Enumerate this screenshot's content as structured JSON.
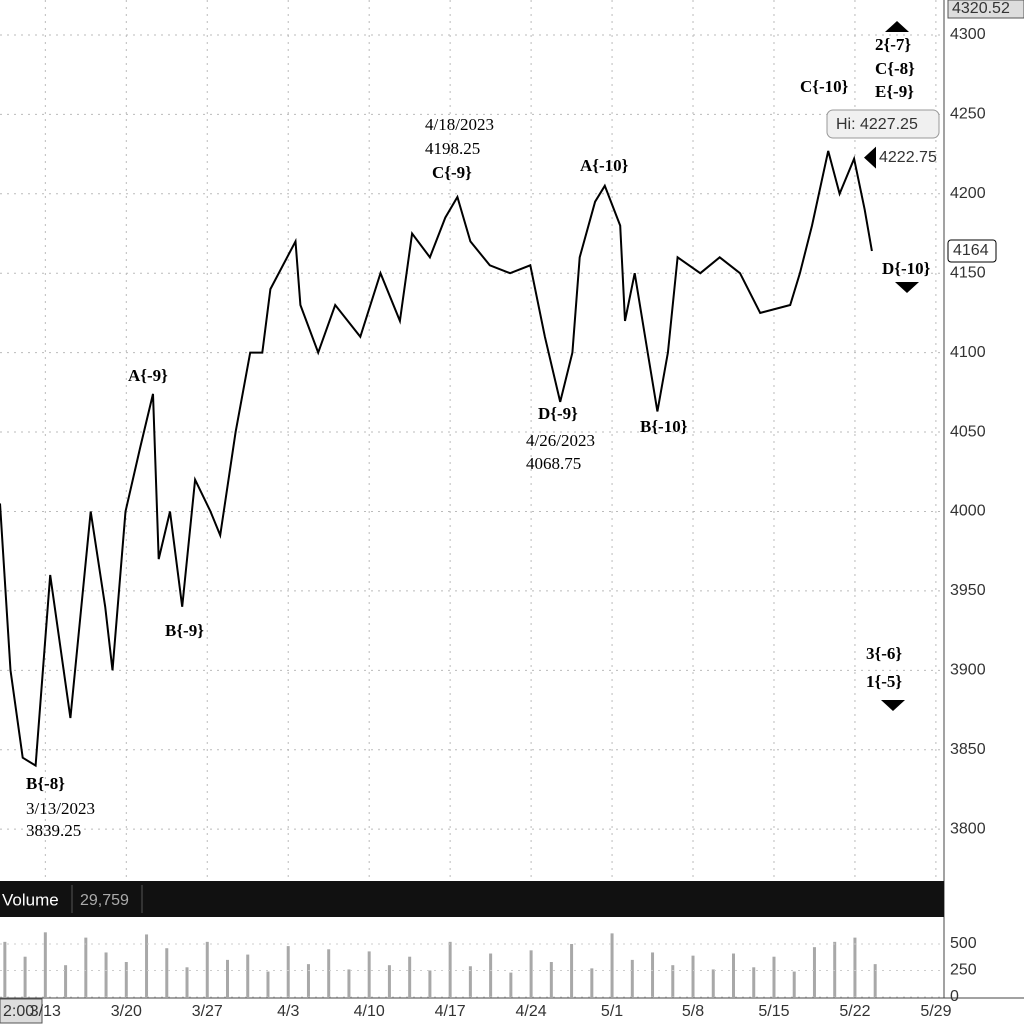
{
  "chart_data": [
    {
      "type": "line",
      "color": "#000000",
      "grid": true,
      "axis_top_label": 4320.52,
      "last_price": 4164,
      "marker_price": 4222.75,
      "high_label": "Hi: 4227.25",
      "xlim": [
        -0.56,
        11.1
      ],
      "ylim": [
        3768,
        4322
      ],
      "xticks": [
        {
          "value": 0,
          "label": "3/13"
        },
        {
          "value": 1,
          "label": "3/20"
        },
        {
          "value": 2,
          "label": "3/27"
        },
        {
          "value": 3,
          "label": "4/3"
        },
        {
          "value": 4,
          "label": "4/10"
        },
        {
          "value": 5,
          "label": "4/17"
        },
        {
          "value": 6,
          "label": "4/24"
        },
        {
          "value": 7,
          "label": "5/1"
        },
        {
          "value": 8,
          "label": "5/8"
        },
        {
          "value": 9,
          "label": "5/15"
        },
        {
          "value": 10,
          "label": "5/22"
        },
        {
          "value": 11,
          "label": "5/29"
        }
      ],
      "yticks": [
        3800,
        3850,
        3900,
        3950,
        4000,
        4050,
        4100,
        4150,
        4200,
        4250,
        4300
      ],
      "x": [
        -0.56,
        -0.43,
        -0.28,
        -0.12,
        0.06,
        0.31,
        0.56,
        0.74,
        0.83,
        0.99,
        1.17,
        1.33,
        1.4,
        1.54,
        1.69,
        1.85,
        2.04,
        2.16,
        2.35,
        2.53,
        2.68,
        2.78,
        3.09,
        3.15,
        3.37,
        3.58,
        3.89,
        4.14,
        4.38,
        4.53,
        4.75,
        4.94,
        5.09,
        5.25,
        5.49,
        5.74,
        5.99,
        6.17,
        6.36,
        6.51,
        6.6,
        6.79,
        6.91,
        7.1,
        7.16,
        7.28,
        7.44,
        7.56,
        7.69,
        7.81,
        8.09,
        8.33,
        8.58,
        8.83,
        9.2,
        9.32,
        9.47,
        9.67,
        9.81,
        9.99,
        10.12,
        10.21
      ],
      "values": [
        4005,
        3900,
        3845,
        3840,
        3960,
        3870,
        4000,
        3940,
        3900,
        4000,
        4040,
        4074,
        3970,
        4000,
        3940,
        4020,
        4000,
        3985,
        4050,
        4100,
        4100,
        4140,
        4170,
        4130,
        4100,
        4130,
        4110,
        4150,
        4120,
        4175,
        4160,
        4185,
        4198,
        4170,
        4155,
        4150,
        4155,
        4110,
        4069,
        4100,
        4160,
        4195,
        4205,
        4180,
        4120,
        4150,
        4100,
        4063,
        4100,
        4160,
        4150,
        4160,
        4150,
        4125,
        4130,
        4150,
        4180,
        4227,
        4200,
        4222,
        4190,
        4164
      ],
      "annotations": [
        "B{-8}",
        "3/13/2023",
        "3839.25",
        "A{-9}",
        "B{-9}",
        "4/18/2023",
        "4198.25",
        "C{-9}",
        "D{-9}",
        "4/26/2023",
        "4068.75",
        "A{-10}",
        "B{-10}",
        "C{-10}",
        "2{-7}",
        "C{-8}",
        "E{-9}",
        "D{-10}",
        "3{-6}",
        "1{-5}"
      ]
    },
    {
      "type": "bar",
      "title": "Volume",
      "color": "#a8a8a8",
      "current": 29759,
      "current_label": "29,759",
      "time_label": "2:00",
      "xlim": [
        -0.56,
        11.1
      ],
      "ylim": [
        0,
        745
      ],
      "yticks": [
        0,
        250,
        500
      ],
      "x": [
        -0.5,
        -0.25,
        0,
        0.25,
        0.5,
        0.75,
        1,
        1.25,
        1.5,
        1.75,
        2,
        2.25,
        2.5,
        2.75,
        3,
        3.25,
        3.5,
        3.75,
        4,
        4.25,
        4.5,
        4.75,
        5,
        5.25,
        5.5,
        5.75,
        6,
        6.25,
        6.5,
        6.75,
        7,
        7.25,
        7.5,
        7.75,
        8,
        8.25,
        8.5,
        8.75,
        9,
        9.25,
        9.5,
        9.75,
        10,
        10.25
      ],
      "values": [
        520,
        380,
        610,
        300,
        560,
        420,
        330,
        590,
        460,
        280,
        520,
        350,
        400,
        240,
        480,
        310,
        450,
        260,
        430,
        300,
        380,
        250,
        520,
        290,
        410,
        230,
        440,
        330,
        500,
        270,
        600,
        350,
        420,
        300,
        390,
        260,
        410,
        280,
        380,
        240,
        470,
        520,
        560,
        310
      ]
    }
  ]
}
